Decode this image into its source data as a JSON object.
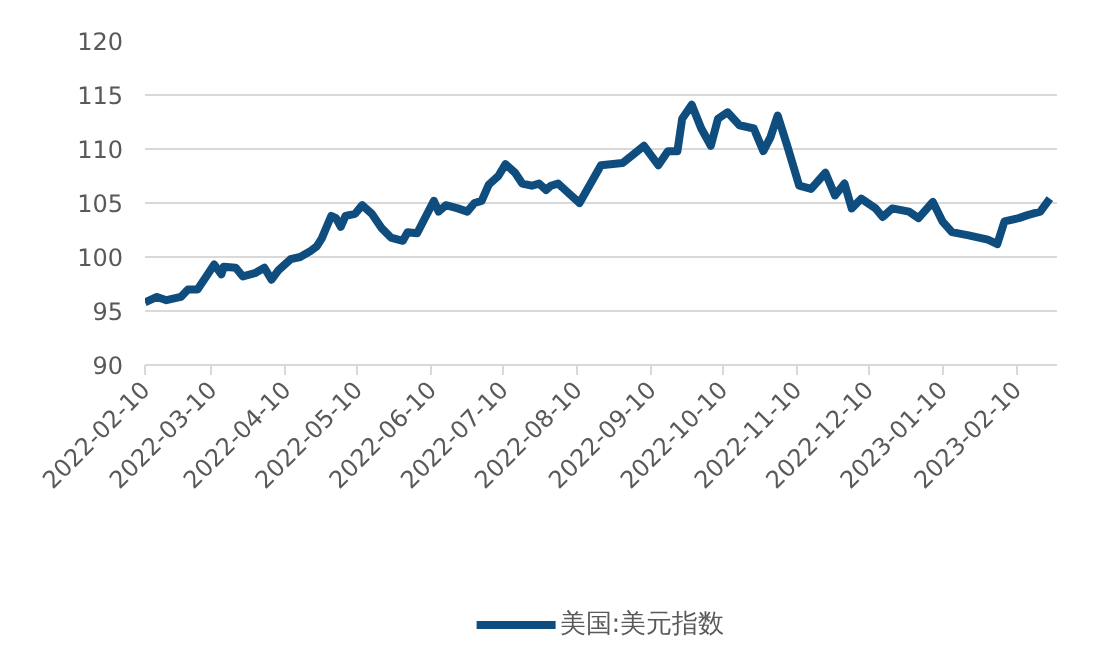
{
  "chart_data": {
    "type": "line",
    "x": [
      "2022-02-10",
      "2022-02-15",
      "2022-02-19",
      "2022-02-25",
      "2022-02-28",
      "2022-03-04",
      "2022-03-08",
      "2022-03-11",
      "2022-03-14",
      "2022-03-15",
      "2022-03-20",
      "2022-03-23",
      "2022-03-28",
      "2022-04-01",
      "2022-04-04",
      "2022-04-07",
      "2022-04-12",
      "2022-04-16",
      "2022-04-20",
      "2022-04-23",
      "2022-04-25",
      "2022-04-29",
      "2022-05-01",
      "2022-05-03",
      "2022-05-05",
      "2022-05-09",
      "2022-05-12",
      "2022-05-16",
      "2022-05-20",
      "2022-05-24",
      "2022-05-29",
      "2022-05-31",
      "2022-06-04",
      "2022-06-07",
      "2022-06-11",
      "2022-06-13",
      "2022-06-16",
      "2022-06-21",
      "2022-06-25",
      "2022-06-28",
      "2022-07-01",
      "2022-07-04",
      "2022-07-08",
      "2022-07-11",
      "2022-07-15",
      "2022-07-18",
      "2022-07-22",
      "2022-07-25",
      "2022-07-28",
      "2022-07-30",
      "2022-08-02",
      "2022-08-04",
      "2022-08-11",
      "2022-08-20",
      "2022-08-29",
      "2022-09-07",
      "2022-09-13",
      "2022-09-17",
      "2022-09-21",
      "2022-09-23",
      "2022-09-27",
      "2022-10-01",
      "2022-10-05",
      "2022-10-08",
      "2022-10-12",
      "2022-10-17",
      "2022-10-23",
      "2022-10-27",
      "2022-10-30",
      "2022-11-02",
      "2022-11-06",
      "2022-11-11",
      "2022-11-16",
      "2022-11-22",
      "2022-11-26",
      "2022-11-30",
      "2022-12-03",
      "2022-12-07",
      "2022-12-13",
      "2022-12-16",
      "2022-12-20",
      "2022-12-27",
      "2022-12-31",
      "2023-01-06",
      "2023-01-10",
      "2023-01-14",
      "2023-01-21",
      "2023-01-29",
      "2023-02-02",
      "2023-02-05",
      "2023-02-11",
      "2023-02-15",
      "2023-02-20",
      "2023-02-24"
    ],
    "series": [
      {
        "name": "美国:美元指数",
        "color": "#0e4d7e",
        "values": [
          95.8,
          96.3,
          96.0,
          96.3,
          97.0,
          97.0,
          98.3,
          99.3,
          98.4,
          99.1,
          99.0,
          98.2,
          98.5,
          99.0,
          97.9,
          98.8,
          99.8,
          100.0,
          100.5,
          101.0,
          101.7,
          103.8,
          103.6,
          102.8,
          103.8,
          104.0,
          104.8,
          104.0,
          102.7,
          101.8,
          101.5,
          102.3,
          102.2,
          103.5,
          105.2,
          104.2,
          104.8,
          104.5,
          104.2,
          105.0,
          105.2,
          106.7,
          107.5,
          108.6,
          107.8,
          106.8,
          106.6,
          106.8,
          106.2,
          106.6,
          106.8,
          106.4,
          105.0,
          108.5,
          108.7,
          110.3,
          108.5,
          109.8,
          109.8,
          112.8,
          114.1,
          111.9,
          110.3,
          112.8,
          113.4,
          112.2,
          111.9,
          109.8,
          111.1,
          113.1,
          110.3,
          106.6,
          106.3,
          107.8,
          105.7,
          106.8,
          104.5,
          105.4,
          104.5,
          103.7,
          104.5,
          104.2,
          103.6,
          105.1,
          103.3,
          102.3,
          102.0,
          101.6,
          101.2,
          103.3,
          103.6,
          103.9,
          104.2,
          105.4
        ]
      }
    ],
    "xlim": [
      "2022-02-10",
      "2023-02-27"
    ],
    "xticks": [
      "2022-02-10",
      "2022-03-10",
      "2022-04-10",
      "2022-05-10",
      "2022-06-10",
      "2022-07-10",
      "2022-08-10",
      "2022-09-10",
      "2022-10-10",
      "2022-11-10",
      "2022-12-10",
      "2023-01-10",
      "2023-02-10"
    ],
    "ylim": [
      90,
      120
    ],
    "yticks": [
      90,
      95,
      100,
      105,
      110,
      115,
      120
    ],
    "grid": "y",
    "legend": "bottom",
    "marker": "none",
    "line_style": "solid"
  }
}
